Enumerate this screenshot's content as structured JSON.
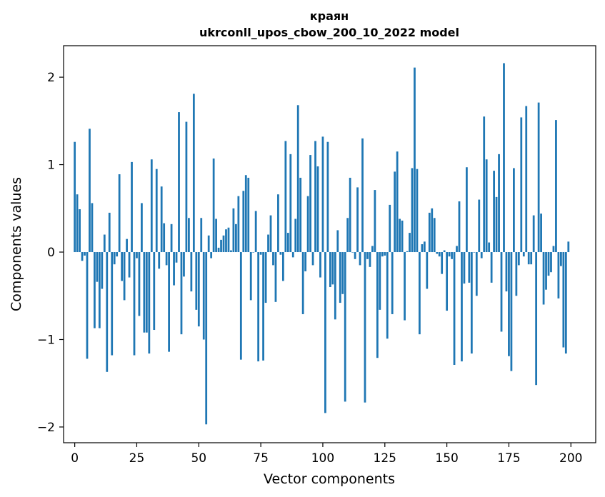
{
  "chart_data": {
    "type": "bar",
    "title": "краян",
    "subtitle": "ukrconll_upos_cbow_200_10_2022 model",
    "xlabel": "Vector components",
    "ylabel": "Components values",
    "xlim": [
      -4.5,
      210
    ],
    "ylim": [
      -2.18,
      2.36
    ],
    "xticks": [
      0,
      25,
      50,
      75,
      100,
      125,
      150,
      175,
      200
    ],
    "yticks": [
      -2,
      -1,
      0,
      1,
      2
    ],
    "ytick_labels": [
      "−2",
      "−1",
      "0",
      "1",
      "2"
    ],
    "grid": false,
    "color": "#1f77b4",
    "values": [
      1.26,
      0.66,
      0.49,
      -0.1,
      -0.04,
      -1.22,
      1.41,
      0.56,
      -0.87,
      -0.34,
      -0.87,
      -0.42,
      0.2,
      -1.37,
      0.45,
      -1.18,
      -0.14,
      -0.05,
      0.89,
      -0.33,
      -0.55,
      0.15,
      -0.29,
      1.03,
      -1.18,
      -0.07,
      -0.73,
      0.56,
      -0.92,
      -0.92,
      -1.16,
      1.06,
      -0.89,
      0.95,
      -0.19,
      0.75,
      0.33,
      -0.15,
      -1.14,
      0.32,
      -0.38,
      -0.12,
      1.6,
      -0.94,
      -0.28,
      1.49,
      0.39,
      -0.45,
      1.81,
      -0.66,
      -0.85,
      0.39,
      -1.0,
      -1.97,
      0.19,
      -0.07,
      1.07,
      0.38,
      0.05,
      0.14,
      0.19,
      0.26,
      0.28,
      0.02,
      0.5,
      0.32,
      0.64,
      -1.23,
      0.7,
      0.88,
      0.85,
      -0.55,
      0.0,
      0.47,
      -1.25,
      -0.03,
      -1.24,
      -0.58,
      0.2,
      0.42,
      -0.15,
      -0.57,
      0.66,
      -0.03,
      -0.33,
      1.27,
      0.22,
      1.12,
      -0.06,
      0.38,
      1.68,
      0.85,
      -0.71,
      -0.22,
      0.64,
      1.11,
      -0.15,
      1.27,
      0.98,
      -0.29,
      1.32,
      -1.84,
      1.26,
      -0.4,
      -0.37,
      -0.77,
      0.25,
      -0.58,
      -0.48,
      -1.71,
      0.39,
      0.85,
      0.0,
      -0.08,
      0.74,
      -0.15,
      1.3,
      -1.72,
      -0.08,
      -0.17,
      0.07,
      0.71,
      -1.21,
      -0.66,
      -0.05,
      -0.04,
      -0.99,
      0.54,
      -0.71,
      0.92,
      1.15,
      0.38,
      0.36,
      -0.78,
      0.01,
      0.22,
      0.96,
      2.11,
      0.95,
      -0.94,
      0.09,
      0.12,
      -0.42,
      0.45,
      0.5,
      0.39,
      -0.02,
      -0.05,
      -0.25,
      0.02,
      -0.67,
      -0.05,
      -0.08,
      -1.29,
      0.07,
      0.58,
      -1.25,
      -0.36,
      0.97,
      -0.35,
      -1.16,
      0.0,
      -0.5,
      0.6,
      -0.07,
      1.55,
      1.06,
      0.11,
      -0.35,
      0.93,
      0.63,
      1.12,
      -0.91,
      2.16,
      -0.45,
      -1.19,
      -1.36,
      0.96,
      -0.5,
      -0.15,
      1.54,
      -0.05,
      1.67,
      -0.14,
      -0.14,
      0.42,
      -1.52,
      1.71,
      0.44,
      -0.6,
      -0.43,
      -0.27,
      -0.23,
      0.07,
      1.51,
      -0.53,
      -0.16,
      -1.09,
      -1.16,
      0.12
    ]
  }
}
